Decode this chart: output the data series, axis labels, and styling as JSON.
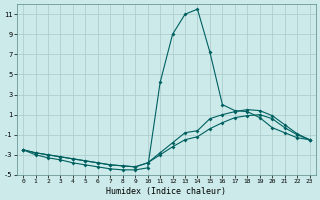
{
  "xlabel": "Humidex (Indice chaleur)",
  "background_color": "#cceaea",
  "grid_color": "#aac8c8",
  "line_color": "#006060",
  "x_data": [
    0,
    1,
    2,
    3,
    4,
    5,
    6,
    7,
    8,
    9,
    10,
    11,
    12,
    13,
    14,
    15,
    16,
    17,
    18,
    19,
    20,
    21,
    22,
    23
  ],
  "line1": [
    -2.5,
    -3.0,
    -3.3,
    -3.5,
    -3.8,
    -4.0,
    -4.2,
    -4.4,
    -4.5,
    -4.5,
    -4.3,
    4.2,
    9.0,
    11.0,
    11.5,
    7.2,
    2.0,
    1.4,
    1.3,
    0.7,
    -0.3,
    -0.8,
    -1.3,
    -1.5
  ],
  "line2": [
    -2.5,
    -2.8,
    -3.0,
    -3.2,
    -3.4,
    -3.6,
    -3.8,
    -4.0,
    -4.1,
    -4.2,
    -3.8,
    -2.8,
    -1.8,
    -0.8,
    -0.6,
    0.6,
    1.0,
    1.3,
    1.5,
    1.4,
    0.9,
    0.0,
    -0.9,
    -1.5
  ],
  "line3": [
    -2.5,
    -2.8,
    -3.0,
    -3.2,
    -3.4,
    -3.6,
    -3.8,
    -4.0,
    -4.1,
    -4.2,
    -3.8,
    -3.0,
    -2.2,
    -1.5,
    -1.2,
    -0.4,
    0.2,
    0.7,
    0.9,
    1.0,
    0.6,
    -0.3,
    -1.0,
    -1.5
  ],
  "ylim": [
    -5,
    12
  ],
  "xlim": [
    -0.5,
    23.5
  ],
  "yticks": [
    -5,
    -3,
    -1,
    1,
    3,
    5,
    7,
    9,
    11
  ],
  "xticks": [
    0,
    1,
    2,
    3,
    4,
    5,
    6,
    7,
    8,
    9,
    10,
    11,
    12,
    13,
    14,
    15,
    16,
    17,
    18,
    19,
    20,
    21,
    22,
    23
  ]
}
